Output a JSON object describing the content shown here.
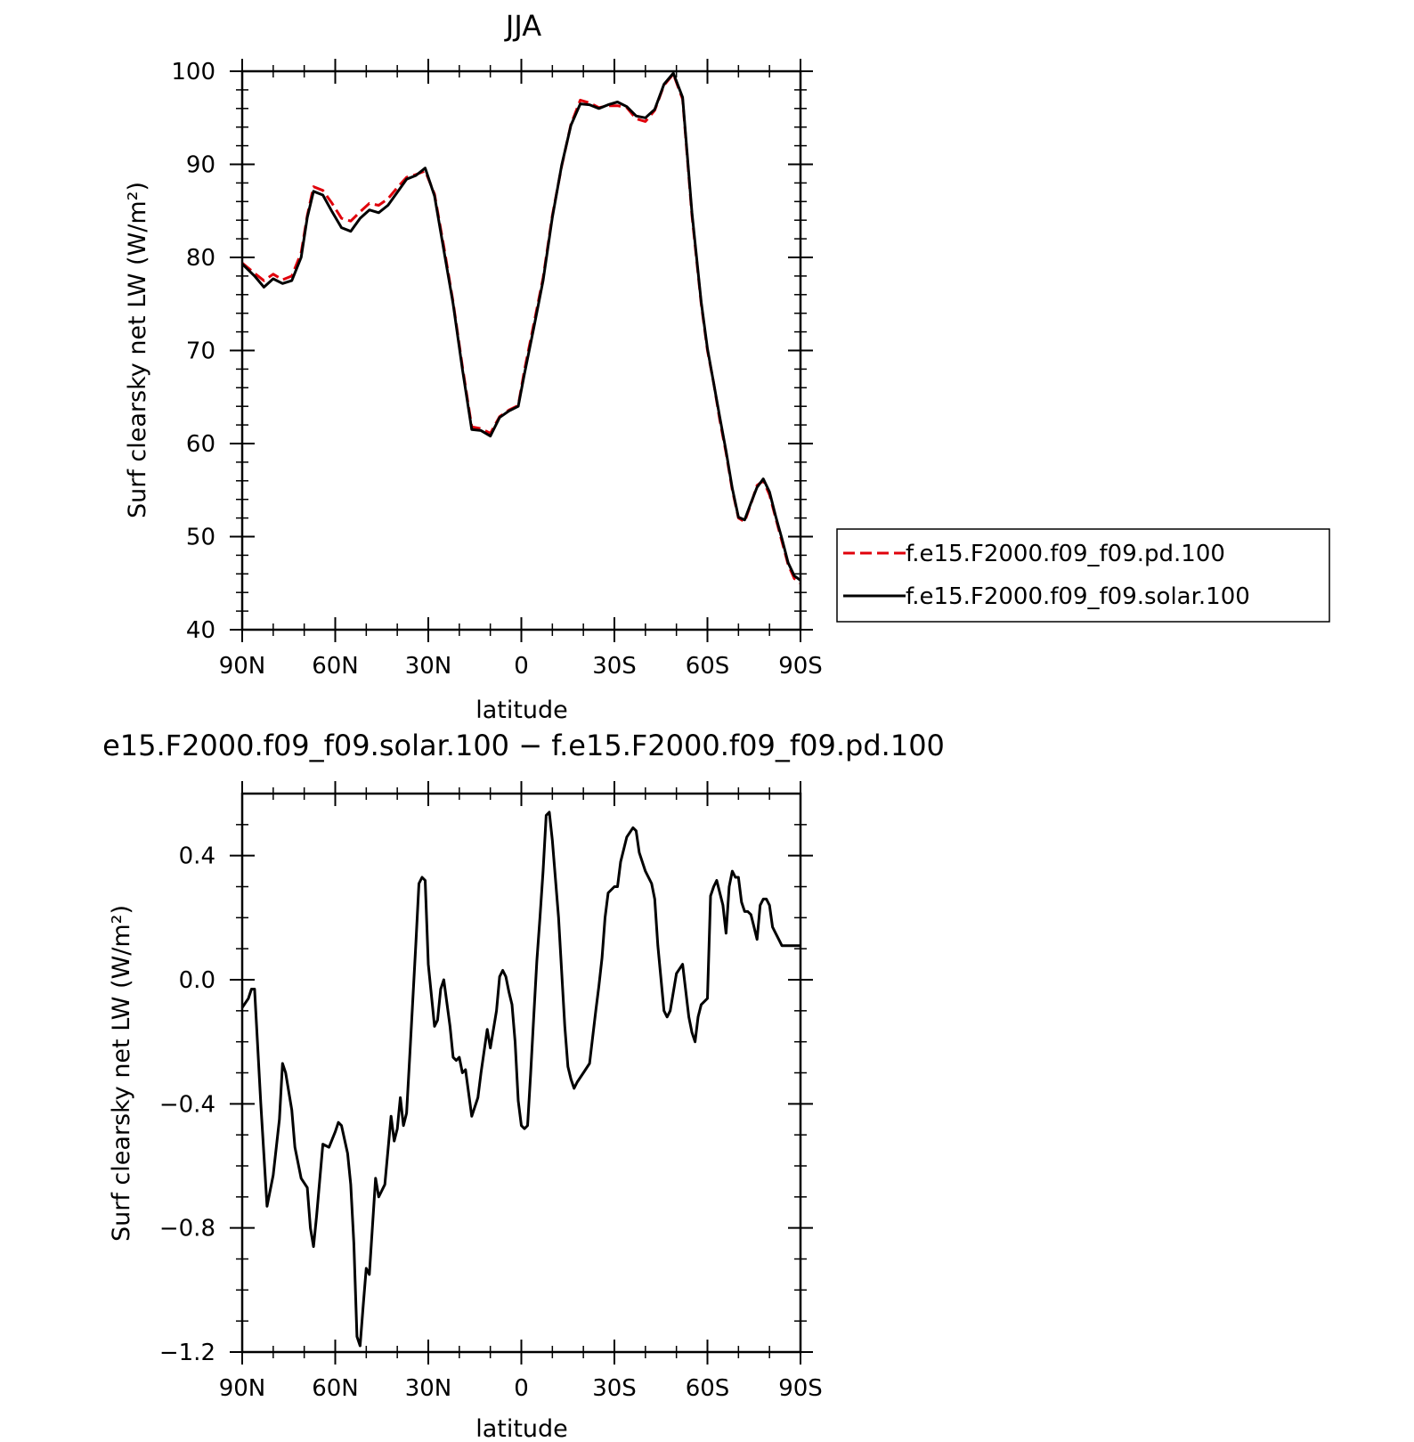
{
  "chart_data": [
    {
      "type": "line",
      "title": "JJA",
      "xlabel": "latitude",
      "ylabel": "Surf clearsky net LW (W/m²)",
      "xlim": [
        90,
        -90
      ],
      "ylim": [
        40,
        100
      ],
      "xticks": [
        90,
        60,
        30,
        0,
        -30,
        -60,
        -90
      ],
      "xtick_labels": [
        "90N",
        "60N",
        "30N",
        "0",
        "30S",
        "60S",
        "90S"
      ],
      "yticks": [
        40,
        50,
        60,
        70,
        80,
        90,
        100
      ],
      "ytick_labels": [
        "40",
        "50",
        "60",
        "70",
        "80",
        "90",
        "100"
      ],
      "legend_position": "right",
      "series": [
        {
          "name": "f.e15.F2000.f09_f09.pd.100",
          "color": "#e0000b",
          "style": "dashed",
          "x": [
            90,
            86,
            83,
            80,
            77,
            74,
            71,
            69,
            67,
            64,
            61,
            58,
            55,
            52,
            49,
            46,
            43,
            40,
            37,
            34,
            31,
            28,
            25,
            22,
            19,
            16,
            13,
            10,
            7,
            4,
            1,
            -1,
            -4,
            -7,
            -10,
            -13,
            -16,
            -19,
            -22,
            -25,
            -28,
            -31,
            -34,
            -37,
            -40,
            -43,
            -46,
            -49,
            -52,
            -55,
            -58,
            -60,
            -62,
            -64,
            -66,
            -68,
            -70,
            -72,
            -74,
            -76,
            -78,
            -80,
            -82,
            -84,
            -86,
            -88,
            -90
          ],
          "y": [
            79.4,
            78.3,
            77.5,
            78.2,
            77.6,
            78.0,
            80.5,
            84.5,
            87.6,
            87.2,
            85.8,
            84.2,
            83.9,
            84.9,
            85.8,
            85.6,
            86.3,
            87.5,
            88.6,
            88.9,
            89.3,
            86.8,
            81.2,
            75.2,
            68.3,
            61.8,
            61.6,
            61.1,
            62.9,
            63.6,
            64.1,
            67.9,
            72.8,
            77.8,
            84.5,
            89.8,
            94.3,
            96.9,
            96.6,
            96.1,
            96.3,
            96.3,
            96.1,
            94.9,
            94.6,
            95.8,
            98.5,
            99.7,
            97.0,
            84.5,
            75.0,
            70.0,
            66.5,
            62.5,
            59.0,
            55.0,
            52.0,
            51.6,
            53.5,
            55.5,
            56.0,
            54.5,
            52.0,
            49.5,
            47.0,
            45.5,
            45.0
          ]
        },
        {
          "name": "f.e15.F2000.f09_f09.solar.100",
          "color": "#000000",
          "style": "solid",
          "x": [
            90,
            86,
            83,
            80,
            77,
            74,
            71,
            69,
            67,
            64,
            61,
            58,
            55,
            52,
            49,
            46,
            43,
            40,
            37,
            34,
            31,
            28,
            25,
            22,
            19,
            16,
            13,
            10,
            7,
            4,
            1,
            -1,
            -4,
            -7,
            -10,
            -13,
            -16,
            -19,
            -22,
            -25,
            -28,
            -31,
            -34,
            -37,
            -40,
            -43,
            -46,
            -49,
            -52,
            -55,
            -58,
            -60,
            -62,
            -64,
            -66,
            -68,
            -70,
            -72,
            -74,
            -76,
            -78,
            -80,
            -82,
            -84,
            -86,
            -88,
            -90
          ],
          "y": [
            79.3,
            78.0,
            76.8,
            77.7,
            77.2,
            77.5,
            80.0,
            84.3,
            87.1,
            86.7,
            84.9,
            83.2,
            82.8,
            84.2,
            85.1,
            84.8,
            85.6,
            87.0,
            88.4,
            88.8,
            89.6,
            86.6,
            80.8,
            75.0,
            68.0,
            61.5,
            61.4,
            60.8,
            62.8,
            63.5,
            64.0,
            67.5,
            72.4,
            77.5,
            84.3,
            89.9,
            94.2,
            96.5,
            96.4,
            96.0,
            96.4,
            96.7,
            96.2,
            95.2,
            95.0,
            95.9,
            98.6,
            99.8,
            97.2,
            84.8,
            75.2,
            70.2,
            66.5,
            62.8,
            59.2,
            55.2,
            52.1,
            51.8,
            53.6,
            55.3,
            56.2,
            54.8,
            52.2,
            49.8,
            47.2,
            45.8,
            45.3
          ]
        }
      ]
    },
    {
      "type": "line",
      "title": "e15.F2000.f09_f09.solar.100 − f.e15.F2000.f09_f09.pd.100",
      "xlabel": "latitude",
      "ylabel": "Surf clearsky net LW (W/m²)",
      "xlim": [
        90,
        -90
      ],
      "ylim": [
        -1.2,
        0.6
      ],
      "xticks": [
        90,
        60,
        30,
        0,
        -30,
        -60,
        -90
      ],
      "xtick_labels": [
        "90N",
        "60N",
        "30N",
        "0",
        "30S",
        "60S",
        "90S"
      ],
      "yticks": [
        -1.2,
        -0.8,
        -0.4,
        0.0,
        0.4
      ],
      "ytick_labels": [
        "−1.2",
        "−0.8",
        "−0.4",
        "0.0",
        "0.4"
      ],
      "series": [
        {
          "color": "#000000",
          "style": "solid",
          "x": [
            90,
            88,
            87,
            86,
            84,
            82,
            80,
            78,
            77,
            76,
            74,
            73,
            71,
            69,
            68,
            67,
            66,
            64,
            62,
            60,
            59,
            58,
            56,
            55,
            54,
            53,
            52,
            51,
            50,
            49,
            47,
            46,
            44,
            42,
            41,
            40,
            39,
            38,
            37,
            36,
            34,
            33,
            32,
            31,
            30,
            28,
            27,
            26,
            25,
            23,
            22,
            21,
            20,
            19,
            18,
            16,
            14,
            13,
            11,
            10,
            8,
            7,
            6,
            5,
            4,
            3,
            2,
            1,
            0,
            -1,
            -2,
            -3,
            -4,
            -5,
            -6,
            -7,
            -8,
            -9,
            -10,
            -12,
            -14,
            -15,
            -16,
            -17,
            -18,
            -20,
            -22,
            -24,
            -25,
            -26,
            -27,
            -28,
            -30,
            -31,
            -32,
            -34,
            -36,
            -37,
            -38,
            -40,
            -42,
            -43,
            -44,
            -46,
            -47,
            -48,
            -50,
            -52,
            -54,
            -55,
            -56,
            -57,
            -58,
            -60,
            -61,
            -62,
            -63,
            -65,
            -66,
            -67,
            -68,
            -69,
            -70,
            -71,
            -72,
            -73,
            -74,
            -75,
            -76,
            -77,
            -78,
            -79,
            -80,
            -81,
            -82,
            -83,
            -84,
            -85,
            -86,
            -87,
            -88,
            -89,
            -90
          ],
          "y": [
            -0.09,
            -0.06,
            -0.03,
            -0.03,
            -0.4,
            -0.73,
            -0.63,
            -0.45,
            -0.27,
            -0.3,
            -0.42,
            -0.54,
            -0.64,
            -0.67,
            -0.8,
            -0.86,
            -0.76,
            -0.53,
            -0.54,
            -0.49,
            -0.46,
            -0.47,
            -0.56,
            -0.66,
            -0.85,
            -1.15,
            -1.18,
            -1.05,
            -0.93,
            -0.95,
            -0.64,
            -0.7,
            -0.66,
            -0.44,
            -0.52,
            -0.48,
            -0.38,
            -0.47,
            -0.43,
            -0.25,
            0.12,
            0.31,
            0.33,
            0.32,
            0.05,
            -0.15,
            -0.13,
            -0.03,
            0.0,
            -0.15,
            -0.25,
            -0.26,
            -0.25,
            -0.3,
            -0.29,
            -0.44,
            -0.38,
            -0.3,
            -0.16,
            -0.22,
            -0.1,
            0.01,
            0.03,
            0.01,
            -0.04,
            -0.08,
            -0.2,
            -0.39,
            -0.47,
            -0.48,
            -0.47,
            -0.3,
            -0.12,
            0.06,
            0.2,
            0.35,
            0.53,
            0.54,
            0.45,
            0.2,
            -0.15,
            -0.28,
            -0.32,
            -0.35,
            -0.33,
            -0.3,
            -0.27,
            -0.1,
            -0.02,
            0.07,
            0.2,
            0.28,
            0.3,
            0.3,
            0.38,
            0.46,
            0.49,
            0.48,
            0.41,
            0.35,
            0.31,
            0.26,
            0.11,
            -0.1,
            -0.12,
            -0.1,
            0.02,
            0.05,
            -0.12,
            -0.17,
            -0.2,
            -0.12,
            -0.08,
            -0.06,
            0.27,
            0.3,
            0.32,
            0.24,
            0.15,
            0.3,
            0.35,
            0.33,
            0.33,
            0.25,
            0.22,
            0.22,
            0.21,
            0.17,
            0.13,
            0.24,
            0.26,
            0.26,
            0.24,
            0.17,
            0.15,
            0.13,
            0.11,
            0.11,
            0.11,
            0.11,
            0.11,
            0.11,
            0.11
          ]
        }
      ]
    }
  ]
}
